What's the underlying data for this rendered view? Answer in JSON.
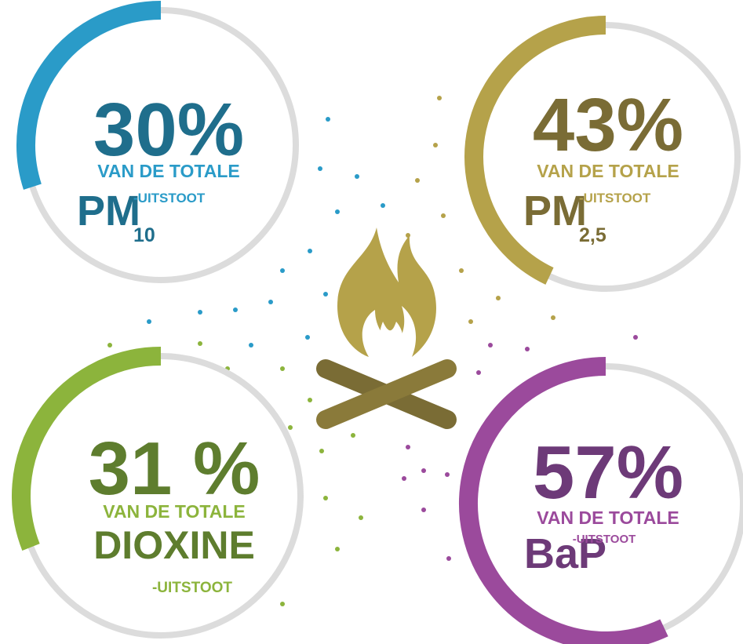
{
  "chart_data": [
    {
      "type": "gauge",
      "values": [
        30
      ],
      "value_labels": [
        "30%"
      ],
      "ylim": [
        0,
        100
      ],
      "color": "#2a9bc8",
      "text_color": "#1f6e8c",
      "caption": "VAN DE TOTALE",
      "pollutant": "PM",
      "subscript": "10",
      "suffix": "-UITSTOOT"
    },
    {
      "type": "gauge",
      "values": [
        43
      ],
      "value_labels": [
        "43%"
      ],
      "ylim": [
        0,
        100
      ],
      "color": "#b5a24a",
      "text_color": "#7a6c35",
      "caption": "VAN DE TOTALE",
      "pollutant": "PM",
      "subscript": "2,5",
      "suffix": "-UITSTOOT"
    },
    {
      "type": "gauge",
      "values": [
        31
      ],
      "value_labels": [
        "31 %"
      ],
      "ylim": [
        0,
        100
      ],
      "color": "#8cb43c",
      "text_color": "#5e7d2e",
      "caption": "VAN DE TOTALE",
      "pollutant": "DIOXINE",
      "suffix": "-UITSTOOT"
    },
    {
      "type": "gauge",
      "values": [
        57
      ],
      "value_labels": [
        "57%"
      ],
      "ylim": [
        0,
        100
      ],
      "color": "#9b4a9c",
      "text_color": "#6d3a78",
      "caption": "VAN DE TOTALE",
      "pollutant": "BaP",
      "suffix": "-UITSTOOT"
    }
  ]
}
